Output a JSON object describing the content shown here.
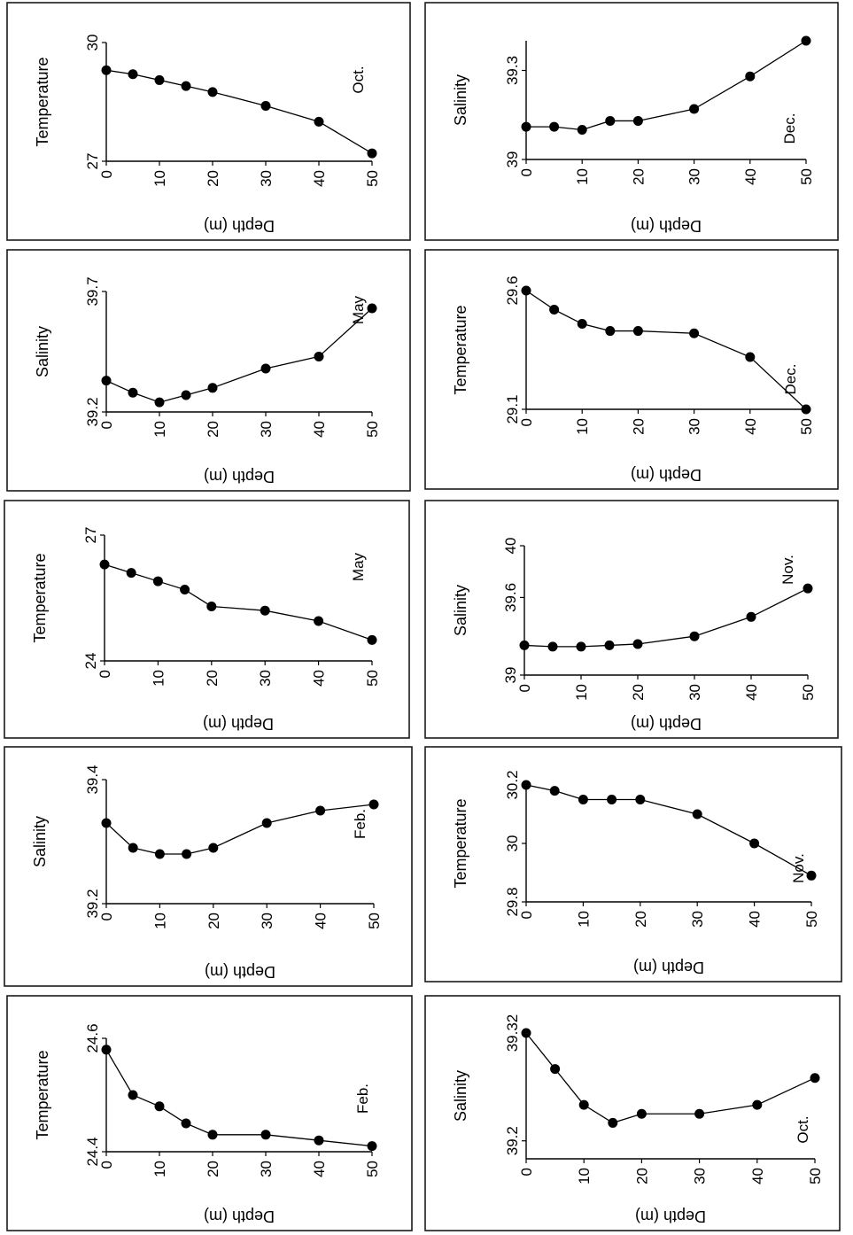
{
  "chart_data": [
    {
      "type": "line",
      "id": "temp-feb",
      "xlabel": "Depth (m)",
      "ylabel": "Temperature",
      "annotation": "Feb.",
      "x": [
        0,
        5,
        10,
        15,
        20,
        30,
        40,
        50
      ],
      "values": [
        24.58,
        24.5,
        24.48,
        24.45,
        24.43,
        24.43,
        24.42,
        24.41
      ],
      "xticks": [
        "0",
        "10",
        "20",
        "30",
        "40",
        "50"
      ],
      "xlim": [
        0,
        50
      ],
      "yticks": [
        "24.4",
        "24.6"
      ],
      "ylim": [
        24.4,
        24.6
      ]
    },
    {
      "type": "line",
      "id": "sal-feb",
      "xlabel": "Depth (m)",
      "ylabel": "Salinity",
      "annotation": "Feb.",
      "x": [
        0,
        5,
        10,
        15,
        20,
        30,
        40,
        50
      ],
      "values": [
        39.33,
        39.29,
        39.28,
        39.28,
        39.29,
        39.33,
        39.35,
        39.36
      ],
      "xticks": [
        "0",
        "10",
        "20",
        "30",
        "40",
        "50"
      ],
      "xlim": [
        0,
        50
      ],
      "yticks": [
        "39.2",
        "39.4"
      ],
      "ylim": [
        39.2,
        39.4
      ]
    },
    {
      "type": "line",
      "id": "temp-may",
      "xlabel": "Depth (m)",
      "ylabel": "Temperature",
      "annotation": "May",
      "x": [
        0,
        5,
        10,
        15,
        20,
        30,
        40,
        50
      ],
      "values": [
        26.3,
        26.1,
        25.9,
        25.7,
        25.3,
        25.2,
        24.95,
        24.5
      ],
      "xticks": [
        "0",
        "10",
        "20",
        "30",
        "40",
        "50"
      ],
      "xlim": [
        0,
        50
      ],
      "yticks": [
        "24",
        "27"
      ],
      "ylim": [
        24,
        27
      ]
    },
    {
      "type": "line",
      "id": "sal-may",
      "xlabel": "Depth (m)",
      "ylabel": "Salinity",
      "annotation": "May",
      "x": [
        0,
        5,
        10,
        15,
        20,
        30,
        40,
        50
      ],
      "values": [
        39.33,
        39.28,
        39.24,
        39.27,
        39.3,
        39.38,
        39.43,
        39.63
      ],
      "xticks": [
        "0",
        "10",
        "20",
        "30",
        "40",
        "50"
      ],
      "xlim": [
        0,
        50
      ],
      "yticks": [
        "39.2",
        "39.7"
      ],
      "ylim": [
        39.2,
        39.7
      ]
    },
    {
      "type": "line",
      "id": "temp-oct",
      "xlabel": "Depth (m)",
      "ylabel": "Temperature",
      "annotation": "Oct.",
      "x": [
        0,
        5,
        10,
        15,
        20,
        30,
        40,
        50
      ],
      "values": [
        29.3,
        29.2,
        29.05,
        28.9,
        28.75,
        28.4,
        28.0,
        27.2
      ],
      "xticks": [
        "0",
        "10",
        "20",
        "30",
        "40",
        "50"
      ],
      "xlim": [
        0,
        50
      ],
      "yticks": [
        "27",
        "30"
      ],
      "ylim": [
        27,
        30
      ]
    },
    {
      "type": "line",
      "id": "sal-oct",
      "xlabel": "Depth (m)",
      "ylabel": "Salinity",
      "annotation": "Oct.",
      "x": [
        0,
        5,
        10,
        15,
        20,
        30,
        40,
        50
      ],
      "values": [
        39.32,
        39.28,
        39.24,
        39.22,
        39.23,
        39.23,
        39.24,
        39.27
      ],
      "xticks": [
        "0",
        "10",
        "20",
        "30",
        "40",
        "50"
      ],
      "xlim": [
        0,
        50
      ],
      "yticks": [
        "39.2",
        "39.32"
      ],
      "ylim": [
        39.18,
        39.32
      ]
    },
    {
      "type": "line",
      "id": "temp-nov",
      "xlabel": "Depth (m)",
      "ylabel": "Temperature",
      "annotation": "Nov.",
      "x": [
        0,
        5,
        10,
        15,
        20,
        30,
        40,
        50
      ],
      "values": [
        30.2,
        30.18,
        30.15,
        30.15,
        30.15,
        30.1,
        30.0,
        29.89
      ],
      "xticks": [
        "0",
        "10",
        "20",
        "30",
        "40",
        "50"
      ],
      "xlim": [
        0,
        50
      ],
      "yticks": [
        "29.8",
        "30",
        "30.2"
      ],
      "ylim": [
        29.8,
        30.2
      ]
    },
    {
      "type": "line",
      "id": "sal-nov",
      "xlabel": "Depth (m)",
      "ylabel": "Salinity",
      "annotation": "Nov.",
      "x": [
        0,
        5,
        10,
        15,
        20,
        30,
        40,
        50
      ],
      "values": [
        39.23,
        39.22,
        39.22,
        39.23,
        39.24,
        39.3,
        39.45,
        39.67
      ],
      "xticks": [
        "0",
        "10",
        "20",
        "30",
        "40",
        "50"
      ],
      "xlim": [
        0,
        50
      ],
      "yticks": [
        "39",
        "39.6",
        "40"
      ],
      "ylim": [
        39,
        40
      ]
    },
    {
      "type": "line",
      "id": "temp-dec",
      "xlabel": "Depth (m)",
      "ylabel": "Temperature",
      "annotation": "Dec.",
      "x": [
        0,
        5,
        10,
        15,
        20,
        30,
        40,
        50
      ],
      "values": [
        29.6,
        29.52,
        29.46,
        29.43,
        29.43,
        29.42,
        29.32,
        29.1
      ],
      "xticks": [
        "0",
        "10",
        "20",
        "30",
        "40",
        "50"
      ],
      "xlim": [
        0,
        50
      ],
      "yticks": [
        "29.1",
        "29.6"
      ],
      "ylim": [
        29.1,
        29.6
      ]
    },
    {
      "type": "line",
      "id": "sal-dec",
      "xlabel": "Depth (m)",
      "ylabel": "Salinity",
      "annotation": "Dec.",
      "x": [
        0,
        5,
        10,
        15,
        20,
        30,
        40,
        50
      ],
      "values": [
        39.11,
        39.11,
        39.1,
        39.13,
        39.13,
        39.17,
        39.28,
        39.4
      ],
      "xticks": [
        "0",
        "10",
        "20",
        "30",
        "40",
        "50"
      ],
      "xlim": [
        0,
        50
      ],
      "yticks": [
        "39",
        "39.3"
      ],
      "ylim": [
        39,
        39.4
      ]
    }
  ]
}
